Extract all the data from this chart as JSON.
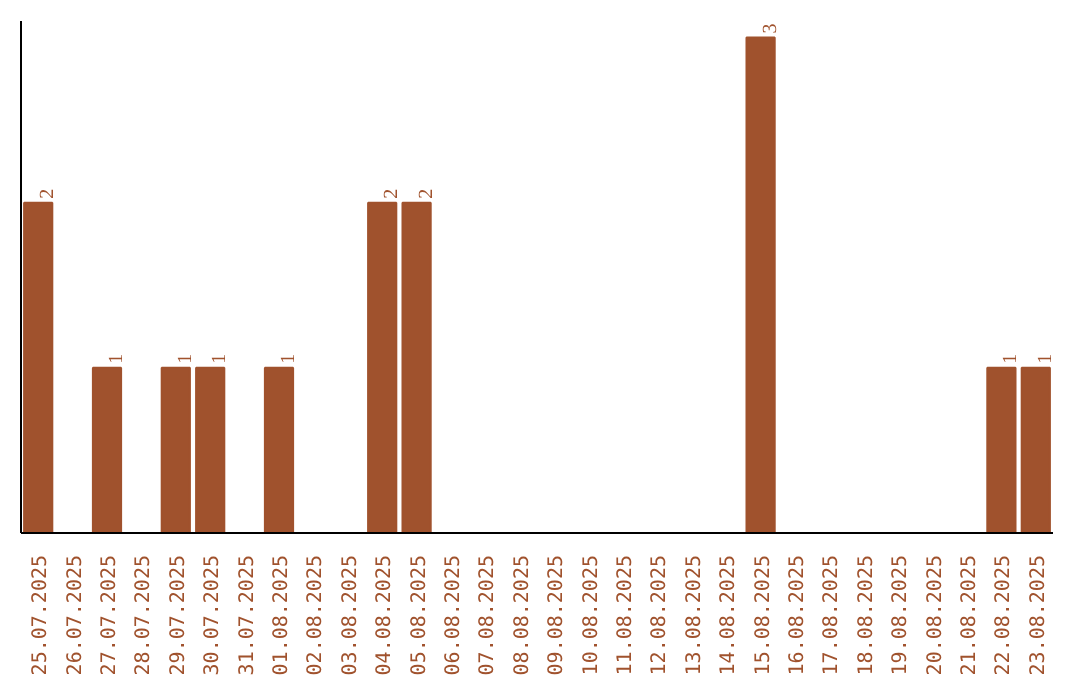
{
  "chart_data": {
    "type": "bar",
    "categories": [
      "25.07.2025",
      "26.07.2025",
      "27.07.2025",
      "28.07.2025",
      "29.07.2025",
      "30.07.2025",
      "31.07.2025",
      "01.08.2025",
      "02.08.2025",
      "03.08.2025",
      "04.08.2025",
      "05.08.2025",
      "06.08.2025",
      "07.08.2025",
      "08.08.2025",
      "09.08.2025",
      "10.08.2025",
      "11.08.2025",
      "12.08.2025",
      "13.08.2025",
      "14.08.2025",
      "15.08.2025",
      "16.08.2025",
      "17.08.2025",
      "18.08.2025",
      "19.08.2025",
      "20.08.2025",
      "21.08.2025",
      "22.08.2025",
      "23.08.2025"
    ],
    "values": [
      2,
      0,
      1,
      0,
      1,
      1,
      0,
      1,
      0,
      0,
      2,
      2,
      0,
      0,
      0,
      0,
      0,
      0,
      0,
      0,
      0,
      3,
      0,
      0,
      0,
      0,
      0,
      0,
      1,
      1
    ],
    "value_labels": [
      "2",
      null,
      "1",
      null,
      "1",
      "1",
      null,
      "1",
      null,
      null,
      "2",
      "2",
      null,
      null,
      null,
      null,
      null,
      null,
      null,
      null,
      null,
      "3",
      null,
      null,
      null,
      null,
      null,
      null,
      "1",
      "1"
    ],
    "color": "#a0522d",
    "ylim": [
      0,
      3.1
    ],
    "tick_labels": "x"
  }
}
